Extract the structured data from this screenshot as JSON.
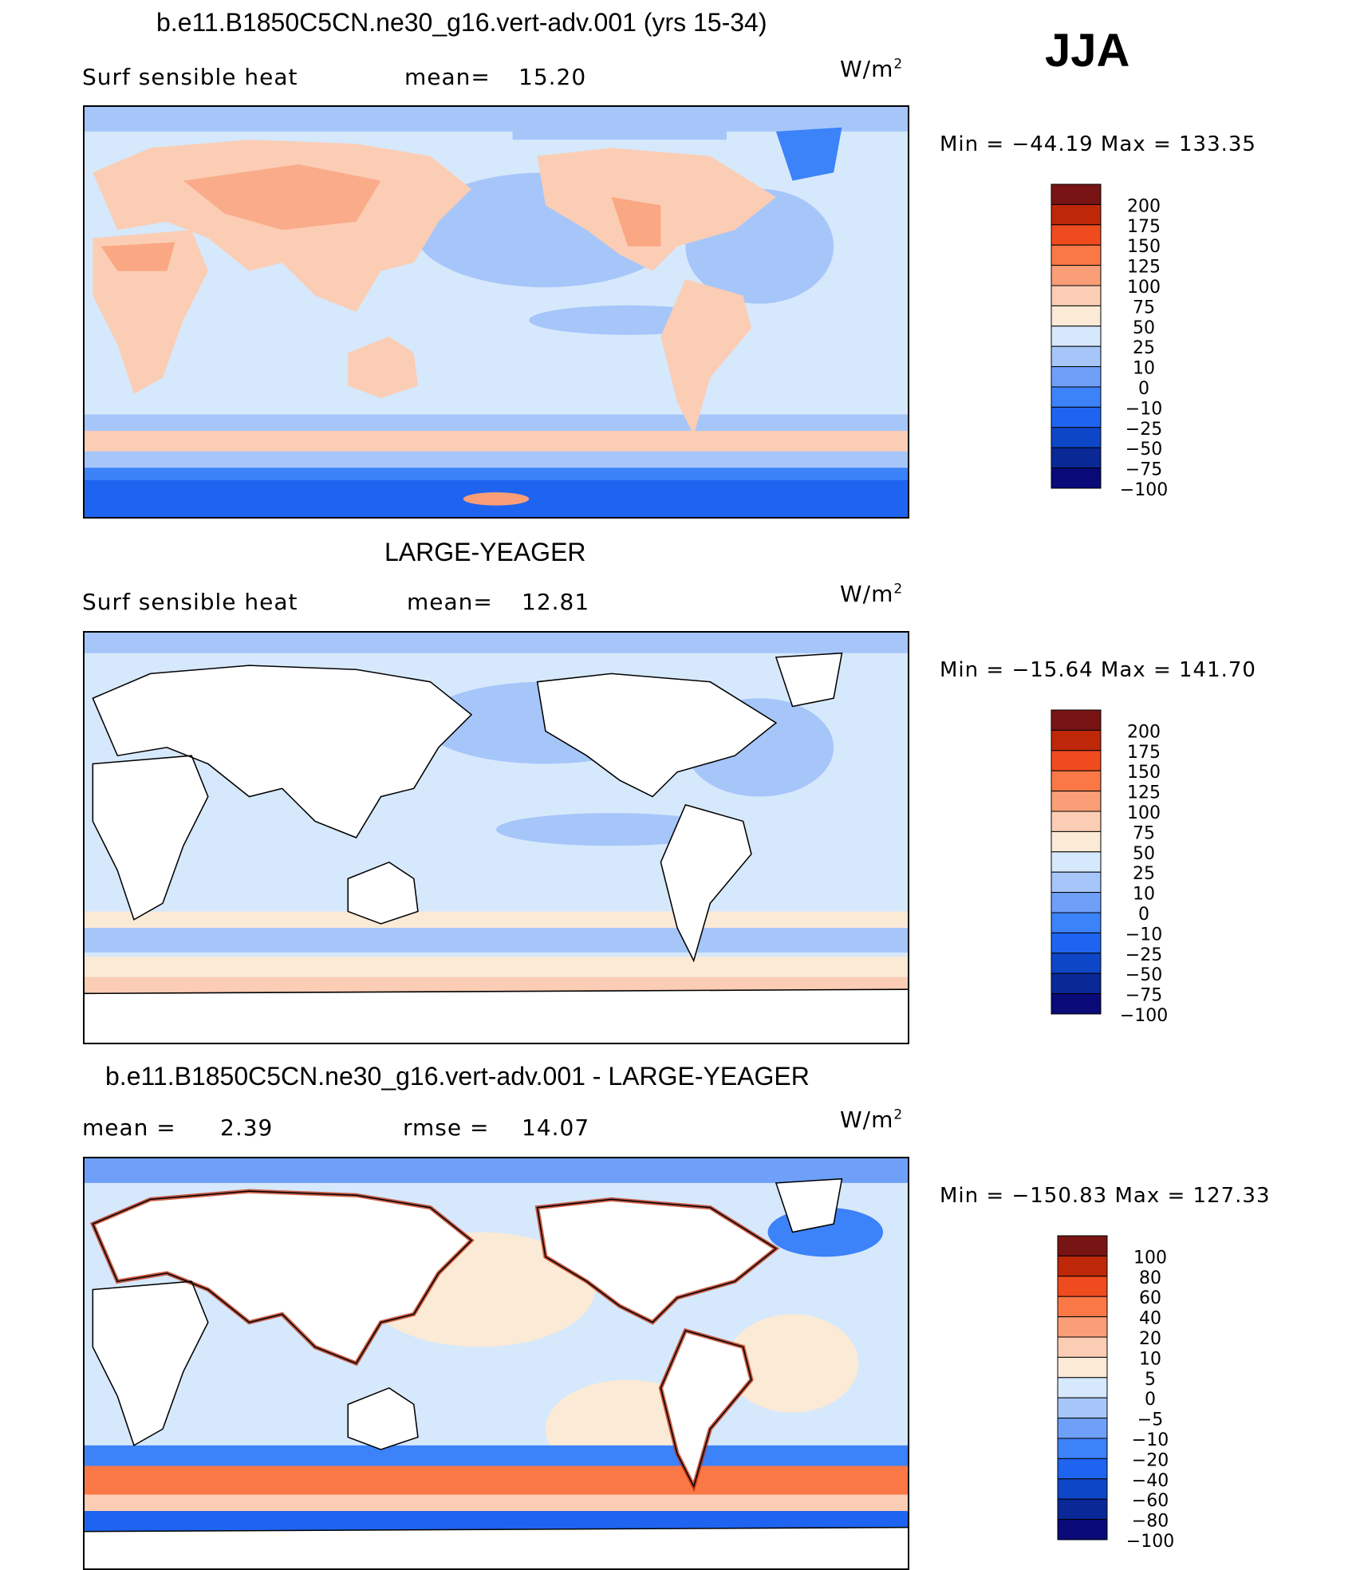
{
  "season": "JJA",
  "units_base": "W/m",
  "units_exp": "2",
  "colors": {
    "abs_scale": [
      "#0a0a78",
      "#0a2896",
      "#0e46c8",
      "#1e64f0",
      "#3c82f8",
      "#6ea0fa",
      "#a6c6fa",
      "#d6e8fb",
      "#fbead6",
      "#fbcdb4",
      "#fa9e78",
      "#fa7846",
      "#f04b1e",
      "#be2808",
      "#781414"
    ],
    "diff_scale": [
      "#0a0a78",
      "#0a2896",
      "#0e46c8",
      "#1e64f0",
      "#3c82f8",
      "#6ea0fa",
      "#a6c6fa",
      "#d6e8fb",
      "#fbead6",
      "#fbcdb4",
      "#fa9e78",
      "#fa7846",
      "#f04b1e",
      "#be2808",
      "#781414"
    ],
    "land_color": "#ffffff",
    "ocean_default": "#d6e8fb"
  },
  "chart_data": [
    {
      "type": "heatmap",
      "title": "b.e11.B1850C5CN.ne30_g16.vert-adv.001 (yrs 15-34)",
      "subtitle_left": "Surf  sensible  heat",
      "stat_label": "mean=",
      "stat_value": "15.20",
      "min_label": "Min  =  −44.19  Max  =  133.35",
      "min": -44.19,
      "max": 133.35,
      "colorbar_labels": [
        "200",
        "175",
        "150",
        "125",
        "100",
        "75",
        "50",
        "25",
        "10",
        "0",
        "−10",
        "−25",
        "−50",
        "−75",
        "−100"
      ],
      "land_masked": false
    },
    {
      "type": "heatmap",
      "title": "LARGE-YEAGER",
      "subtitle_left": "Surf  sensible  heat",
      "stat_label": "mean=",
      "stat_value": "12.81",
      "min_label": "Min  =  −15.64  Max  =  141.70",
      "min": -15.64,
      "max": 141.7,
      "colorbar_labels": [
        "200",
        "175",
        "150",
        "125",
        "100",
        "75",
        "50",
        "25",
        "10",
        "0",
        "−10",
        "−25",
        "−50",
        "−75",
        "−100"
      ],
      "land_masked": true
    },
    {
      "type": "heatmap",
      "title": "b.e11.B1850C5CN.ne30_g16.vert-adv.001 - LARGE-YEAGER",
      "subtitle_left": "mean  =",
      "subtitle_left_value": "2.39",
      "stat_label": "rmse  =",
      "stat_value": "14.07",
      "min_label": "Min  =  −150.83  Max  =  127.33",
      "min": -150.83,
      "max": 127.33,
      "colorbar_labels": [
        "100",
        "80",
        "60",
        "40",
        "20",
        "10",
        "5",
        "0",
        "−5",
        "−10",
        "−20",
        "−40",
        "−60",
        "−80",
        "−100"
      ],
      "land_masked": true
    }
  ]
}
